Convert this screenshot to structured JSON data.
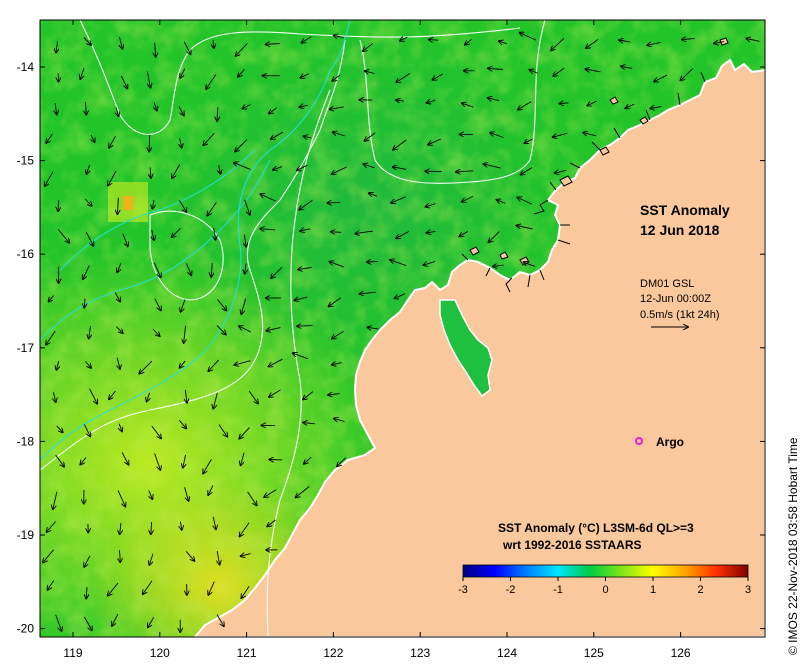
{
  "map": {
    "title": "SST Anomaly",
    "date": "12 Jun 2018",
    "current_label": "DM01 GSL",
    "current_time": "12-Jun 00:00Z",
    "current_scale": "0.5m/s (1kt 24h)",
    "argo_label": "Argo",
    "legend_title": "SST Anomaly (°C) L3SM-6d QL>=3",
    "legend_subtitle": "wrt 1992-2016 SSTAARS",
    "credit": "© IMOS 22-Nov-2018 03:58 Hobart Time",
    "land_color": "#f9c89c",
    "anomaly_color_mid": "#22c42a",
    "argo_color": "#e020e0",
    "x_ticks": [
      "119",
      "120",
      "121",
      "122",
      "123",
      "124",
      "125",
      "126"
    ],
    "y_ticks": [
      "-14",
      "-15",
      "-16",
      "-17",
      "-18",
      "-19",
      "-20"
    ],
    "colorbar_ticks": [
      "-3",
      "-2",
      "-1",
      "0",
      "1",
      "2",
      "3"
    ],
    "colorbar_colors": [
      "#00007f",
      "#0000ff",
      "#007fff",
      "#00e5ff",
      "#00cc44",
      "#7fe51a",
      "#ffff00",
      "#ffa500",
      "#ff3000",
      "#7f0000"
    ]
  }
}
